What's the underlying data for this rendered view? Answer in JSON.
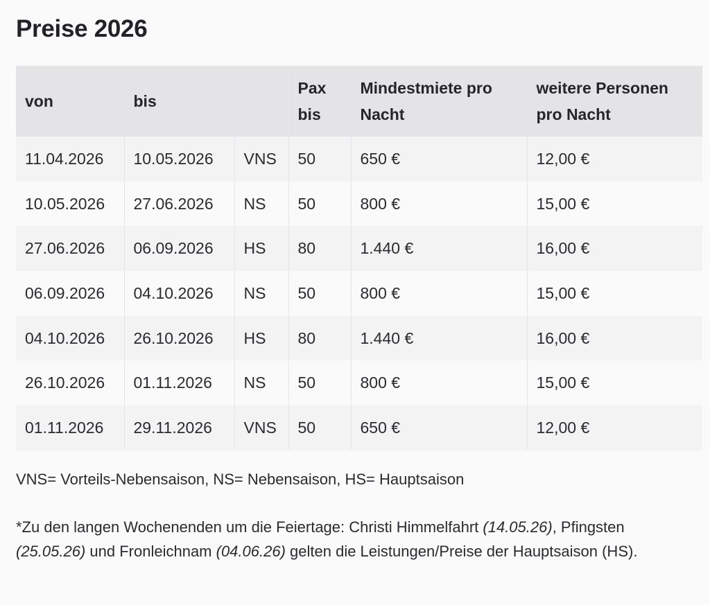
{
  "title": "Preise 2026",
  "table": {
    "headers": [
      "von",
      "bis",
      "",
      "Pax bis",
      "Mindestmiete pro Nacht",
      "weitere Personen pro Nacht"
    ],
    "header_lines": {
      "pax": [
        "Pax",
        "bis"
      ],
      "mindestmiete": [
        "Mindestmiete pro",
        "Nacht"
      ],
      "weitere": [
        "weitere Personen",
        "pro Nacht"
      ]
    },
    "rows": [
      [
        "11.04.2026",
        "10.05.2026",
        "VNS",
        "50",
        "650 €",
        "12,00 €"
      ],
      [
        "10.05.2026",
        "27.06.2026",
        "NS",
        "50",
        "800 €",
        "15,00 €"
      ],
      [
        "27.06.2026",
        "06.09.2026",
        "HS",
        "80",
        "1.440 €",
        "16,00 €"
      ],
      [
        "06.09.2026",
        "04.10.2026",
        "NS",
        "50",
        "800 €",
        "15,00 €"
      ],
      [
        "04.10.2026",
        "26.10.2026",
        "HS",
        "80",
        "1.440 €",
        "16,00 €"
      ],
      [
        "26.10.2026",
        "01.11.2026",
        "NS",
        "50",
        "800 €",
        "15,00 €"
      ],
      [
        "01.11.2026",
        "29.11.2026",
        "VNS",
        "50",
        "650 €",
        "12,00 €"
      ]
    ]
  },
  "legend": "VNS= Vorteils-Nebensaison, NS= Nebensaison, HS= Hauptsaison",
  "note": {
    "part1": "*Zu den langen Wochenenden um die Feiertage: Christi Himmelfahrt ",
    "date1": "(14.05.26)",
    "part2": ", Pfingsten ",
    "date2": "(25.05.26)",
    "part3": " und Fronleichnam ",
    "date3": "(04.06.26)",
    "part4": " gelten die Leistungen/Preise der Hauptsaison (HS)."
  }
}
